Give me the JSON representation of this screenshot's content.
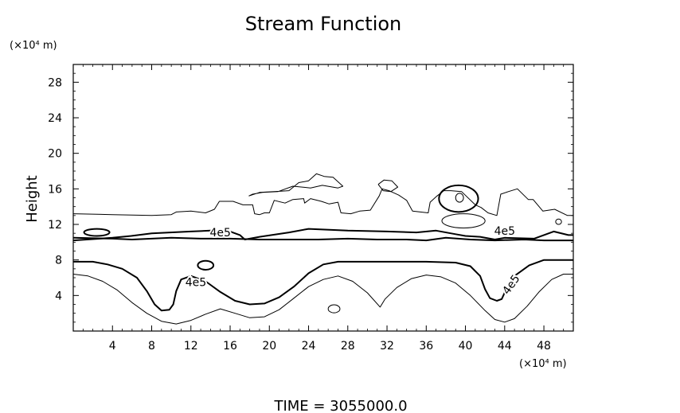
{
  "chart_data": {
    "type": "contour",
    "title": "Stream Function",
    "ylabel": "Height",
    "x_unit_label": "(×10⁴ m)",
    "y_unit_label": "(×10⁴ m)",
    "footer": "TIME  =  3055000.0",
    "xlim": [
      0,
      51
    ],
    "ylim": [
      0,
      30
    ],
    "xticks": [
      4,
      8,
      12,
      16,
      20,
      24,
      28,
      32,
      36,
      40,
      44,
      48
    ],
    "yticks": [
      4,
      8,
      12,
      16,
      20,
      24,
      28
    ],
    "line_color": "#000000",
    "contour_labels": [
      {
        "text": "4e5",
        "x": 15.0,
        "y": 11.0,
        "rotate": 0
      },
      {
        "text": "4e5",
        "x": 12.5,
        "y": 5.4,
        "rotate": 0
      },
      {
        "text": "4e5",
        "x": 44.0,
        "y": 11.2,
        "rotate": 0
      },
      {
        "text": "4e5",
        "x": 44.7,
        "y": 5.2,
        "rotate": -55
      }
    ],
    "contours": [
      {
        "name": "upper-thin",
        "weight": "thin",
        "points": [
          [
            0,
            13.2
          ],
          [
            4,
            13.1
          ],
          [
            8,
            13
          ],
          [
            10,
            13.1
          ],
          [
            10.5,
            13.4
          ],
          [
            12,
            13.5
          ],
          [
            13.5,
            13.3
          ],
          [
            14.4,
            13.7
          ],
          [
            14.9,
            14.6
          ],
          [
            16.3,
            14.6
          ],
          [
            17.3,
            14.2
          ],
          [
            18.3,
            14.2
          ],
          [
            18.5,
            13.2
          ],
          [
            19,
            13.1
          ],
          [
            19.5,
            13.3
          ],
          [
            20,
            13.3
          ],
          [
            20.5,
            14.7
          ],
          [
            21.6,
            14.4
          ],
          [
            22.4,
            14.8
          ],
          [
            23.5,
            14.9
          ],
          [
            23.6,
            14.4
          ],
          [
            24.2,
            14.9
          ],
          [
            25.3,
            14.6
          ],
          [
            26.1,
            14.3
          ],
          [
            27,
            14.5
          ],
          [
            27.3,
            13.3
          ],
          [
            28.3,
            13.2
          ],
          [
            29.2,
            13.5
          ],
          [
            30.3,
            13.6
          ],
          [
            31.2,
            15.2
          ],
          [
            31.5,
            16
          ],
          [
            32.2,
            15.8
          ],
          [
            33.2,
            15.3
          ],
          [
            34,
            14.7
          ],
          [
            34.6,
            13.5
          ],
          [
            35.4,
            13.4
          ],
          [
            36.2,
            13.3
          ],
          [
            36.4,
            14.5
          ],
          [
            37.1,
            15.2
          ],
          [
            37.8,
            15.8
          ],
          [
            38.5,
            15.8
          ],
          [
            39.6,
            15.7
          ],
          [
            41,
            14.2
          ],
          [
            41.6,
            13.9
          ],
          [
            42.3,
            13.3
          ],
          [
            43.2,
            13
          ],
          [
            43.6,
            15.4
          ],
          [
            44.4,
            15.7
          ],
          [
            45.3,
            16
          ],
          [
            46.4,
            14.8
          ],
          [
            46.9,
            14.8
          ],
          [
            47.9,
            13.5
          ],
          [
            49.1,
            13.7
          ],
          [
            50.4,
            13
          ],
          [
            51,
            13
          ]
        ]
      },
      {
        "name": "upper-thin-b",
        "weight": "thin",
        "points": [
          [
            17.9,
            15.2
          ],
          [
            19,
            15.6
          ],
          [
            20.5,
            15.7
          ],
          [
            22,
            15.8
          ],
          [
            23,
            16.7
          ],
          [
            24,
            16.9
          ],
          [
            24.8,
            17.7
          ],
          [
            25.6,
            17.4
          ],
          [
            26.5,
            17.3
          ],
          [
            27.5,
            16.3
          ],
          [
            27,
            16.1
          ],
          [
            25.4,
            16.4
          ],
          [
            24.2,
            16.1
          ],
          [
            22.4,
            16.3
          ],
          [
            20.9,
            15.7
          ],
          [
            19.3,
            15.6
          ],
          [
            18.3,
            15.4
          ],
          [
            17.9,
            15.2
          ]
        ]
      },
      {
        "name": "upper-thin-c",
        "weight": "thin",
        "points": [
          [
            31.1,
            16.5
          ],
          [
            31.7,
            17
          ],
          [
            32.5,
            16.9
          ],
          [
            33.1,
            16.2
          ],
          [
            32.4,
            15.7
          ],
          [
            31.6,
            15.8
          ],
          [
            31.1,
            16.5
          ]
        ]
      },
      {
        "name": "mid-thick",
        "weight": "thick",
        "points": [
          [
            0,
            10.2
          ],
          [
            4,
            10.5
          ],
          [
            5.9,
            10.7
          ],
          [
            8,
            11
          ],
          [
            12,
            11.2
          ],
          [
            14,
            11.3
          ],
          [
            16,
            11.2
          ],
          [
            17,
            10.8
          ],
          [
            17.5,
            10.3
          ],
          [
            19,
            10.6
          ],
          [
            22,
            11.1
          ],
          [
            24,
            11.5
          ],
          [
            28,
            11.3
          ],
          [
            32,
            11.2
          ],
          [
            35,
            11.1
          ],
          [
            37,
            11.3
          ],
          [
            39,
            10.9
          ],
          [
            40,
            10.7
          ],
          [
            41.5,
            10.6
          ],
          [
            43,
            10.3
          ],
          [
            44,
            10.5
          ],
          [
            47,
            10.4
          ],
          [
            49,
            11.2
          ],
          [
            50.5,
            10.8
          ],
          [
            51,
            10.8
          ]
        ]
      },
      {
        "name": "mid-thick-b",
        "weight": "thick",
        "points": [
          [
            0,
            10.5
          ],
          [
            4,
            10.4
          ],
          [
            6,
            10.3
          ],
          [
            8,
            10.4
          ],
          [
            10,
            10.5
          ],
          [
            13,
            10.4
          ],
          [
            16,
            10.4
          ],
          [
            19,
            10.3
          ],
          [
            22,
            10.3
          ],
          [
            25,
            10.3
          ],
          [
            28,
            10.4
          ],
          [
            31,
            10.3
          ],
          [
            34,
            10.3
          ],
          [
            36,
            10.2
          ],
          [
            38,
            10.5
          ],
          [
            40.5,
            10.3
          ],
          [
            43,
            10.2
          ],
          [
            46,
            10.3
          ],
          [
            48,
            10.2
          ],
          [
            51,
            10.2
          ]
        ]
      },
      {
        "name": "lower-thick",
        "weight": "thick",
        "points": [
          [
            0,
            7.8
          ],
          [
            2,
            7.8
          ],
          [
            3.5,
            7.5
          ],
          [
            5,
            7
          ],
          [
            6.5,
            6
          ],
          [
            7.5,
            4.5
          ],
          [
            8.3,
            3
          ],
          [
            9,
            2.3
          ],
          [
            9.8,
            2.4
          ],
          [
            10.2,
            3
          ],
          [
            10.5,
            4.5
          ],
          [
            11,
            5.8
          ],
          [
            12,
            6.2
          ],
          [
            13.5,
            5.6
          ],
          [
            15,
            4.4
          ],
          [
            16.5,
            3.4
          ],
          [
            18,
            3
          ],
          [
            19.5,
            3.1
          ],
          [
            21,
            3.8
          ],
          [
            22.5,
            5
          ],
          [
            24,
            6.5
          ],
          [
            25.5,
            7.5
          ],
          [
            27,
            7.8
          ],
          [
            30,
            7.8
          ],
          [
            33,
            7.8
          ],
          [
            36,
            7.8
          ],
          [
            39,
            7.7
          ],
          [
            40.5,
            7.3
          ],
          [
            41.5,
            6.2
          ],
          [
            42,
            4.7
          ],
          [
            42.5,
            3.7
          ],
          [
            43.2,
            3.4
          ],
          [
            43.7,
            3.6
          ],
          [
            44.2,
            4.8
          ],
          [
            45,
            6.2
          ],
          [
            46.5,
            7.4
          ],
          [
            48,
            8
          ],
          [
            51,
            8
          ]
        ]
      },
      {
        "name": "lower-thin",
        "weight": "thin",
        "points": [
          [
            0,
            6.4
          ],
          [
            1.5,
            6.2
          ],
          [
            3,
            5.6
          ],
          [
            4.5,
            4.6
          ],
          [
            6,
            3.2
          ],
          [
            7.5,
            2
          ],
          [
            9,
            1.1
          ],
          [
            10.5,
            0.8
          ],
          [
            12,
            1.2
          ],
          [
            13.5,
            1.9
          ],
          [
            15,
            2.5
          ],
          [
            16.5,
            2
          ],
          [
            18,
            1.5
          ],
          [
            19.5,
            1.6
          ],
          [
            21,
            2.4
          ],
          [
            22.5,
            3.7
          ],
          [
            24,
            5
          ],
          [
            25.5,
            5.8
          ],
          [
            27,
            6.2
          ],
          [
            28.5,
            5.6
          ],
          [
            30,
            4.3
          ],
          [
            31.3,
            2.7
          ],
          [
            31.8,
            3.6
          ],
          [
            33,
            4.9
          ],
          [
            34.5,
            5.9
          ],
          [
            36,
            6.3
          ],
          [
            37.5,
            6.1
          ],
          [
            39,
            5.4
          ],
          [
            40.5,
            4
          ],
          [
            42,
            2.3
          ],
          [
            43,
            1.3
          ],
          [
            44,
            1
          ],
          [
            45,
            1.4
          ],
          [
            46.3,
            2.8
          ],
          [
            47.5,
            4.4
          ],
          [
            48.8,
            5.8
          ],
          [
            50,
            6.4
          ],
          [
            51,
            6.4
          ]
        ]
      }
    ],
    "closed_contours": [
      {
        "name": "cell-40-thick",
        "weight": "thick",
        "cx": 39.3,
        "cy": 14.9,
        "rx": 2.0,
        "ry": 1.5
      },
      {
        "name": "cell-40-inner",
        "weight": "thin",
        "cx": 39.4,
        "cy": 15.0,
        "rx": 0.4,
        "ry": 0.5
      },
      {
        "name": "cell-40-lower",
        "weight": "thin",
        "cx": 39.8,
        "cy": 12.4,
        "rx": 2.2,
        "ry": 0.8
      },
      {
        "name": "cell-13-thick",
        "weight": "thick",
        "cx": 13.5,
        "cy": 7.4,
        "rx": 0.8,
        "ry": 0.5
      },
      {
        "name": "cell-27",
        "weight": "thin",
        "cx": 26.6,
        "cy": 2.5,
        "rx": 0.6,
        "ry": 0.45
      },
      {
        "name": "cell-49",
        "weight": "thin",
        "cx": 49.5,
        "cy": 12.3,
        "rx": 0.3,
        "ry": 0.3
      },
      {
        "name": "cell-3",
        "weight": "thick",
        "cx": 2.4,
        "cy": 11.1,
        "rx": 1.3,
        "ry": 0.4
      }
    ]
  }
}
